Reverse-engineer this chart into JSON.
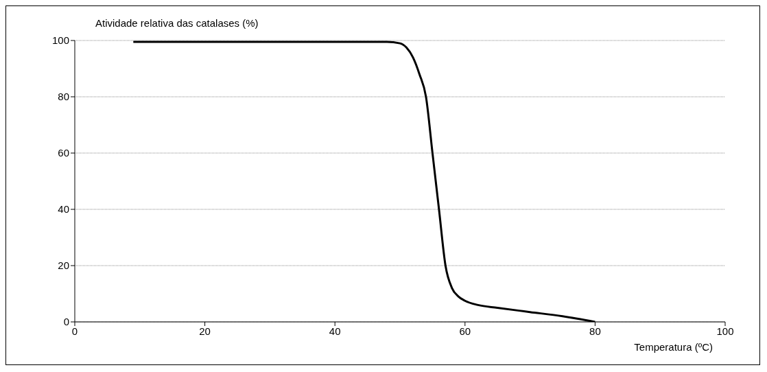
{
  "chart_data": {
    "type": "line",
    "xlabel": "Temperatura (ºC)",
    "ylabel": "Atividade relativa das catalases (%)",
    "x": [
      9,
      20,
      30,
      40,
      45,
      48,
      50,
      51,
      52,
      53,
      54,
      55,
      56,
      57,
      58,
      59,
      60,
      62,
      65,
      70,
      75,
      80
    ],
    "series": [
      {
        "color": "#000000",
        "values": [
          99.5,
          99.5,
          99.5,
          99.5,
          99.5,
          99.5,
          99,
          97.5,
          94,
          88,
          80,
          60,
          40,
          20,
          12,
          9,
          7.5,
          6,
          5,
          3.5,
          2,
          0
        ]
      }
    ],
    "xlim": [
      0,
      100
    ],
    "xticks": [
      0,
      20,
      40,
      60,
      80,
      100
    ],
    "ylim": [
      0,
      100
    ],
    "yticks": [
      0,
      20,
      40,
      60,
      80,
      100
    ],
    "grid": "y",
    "marker": "none",
    "line_style": "solid"
  }
}
